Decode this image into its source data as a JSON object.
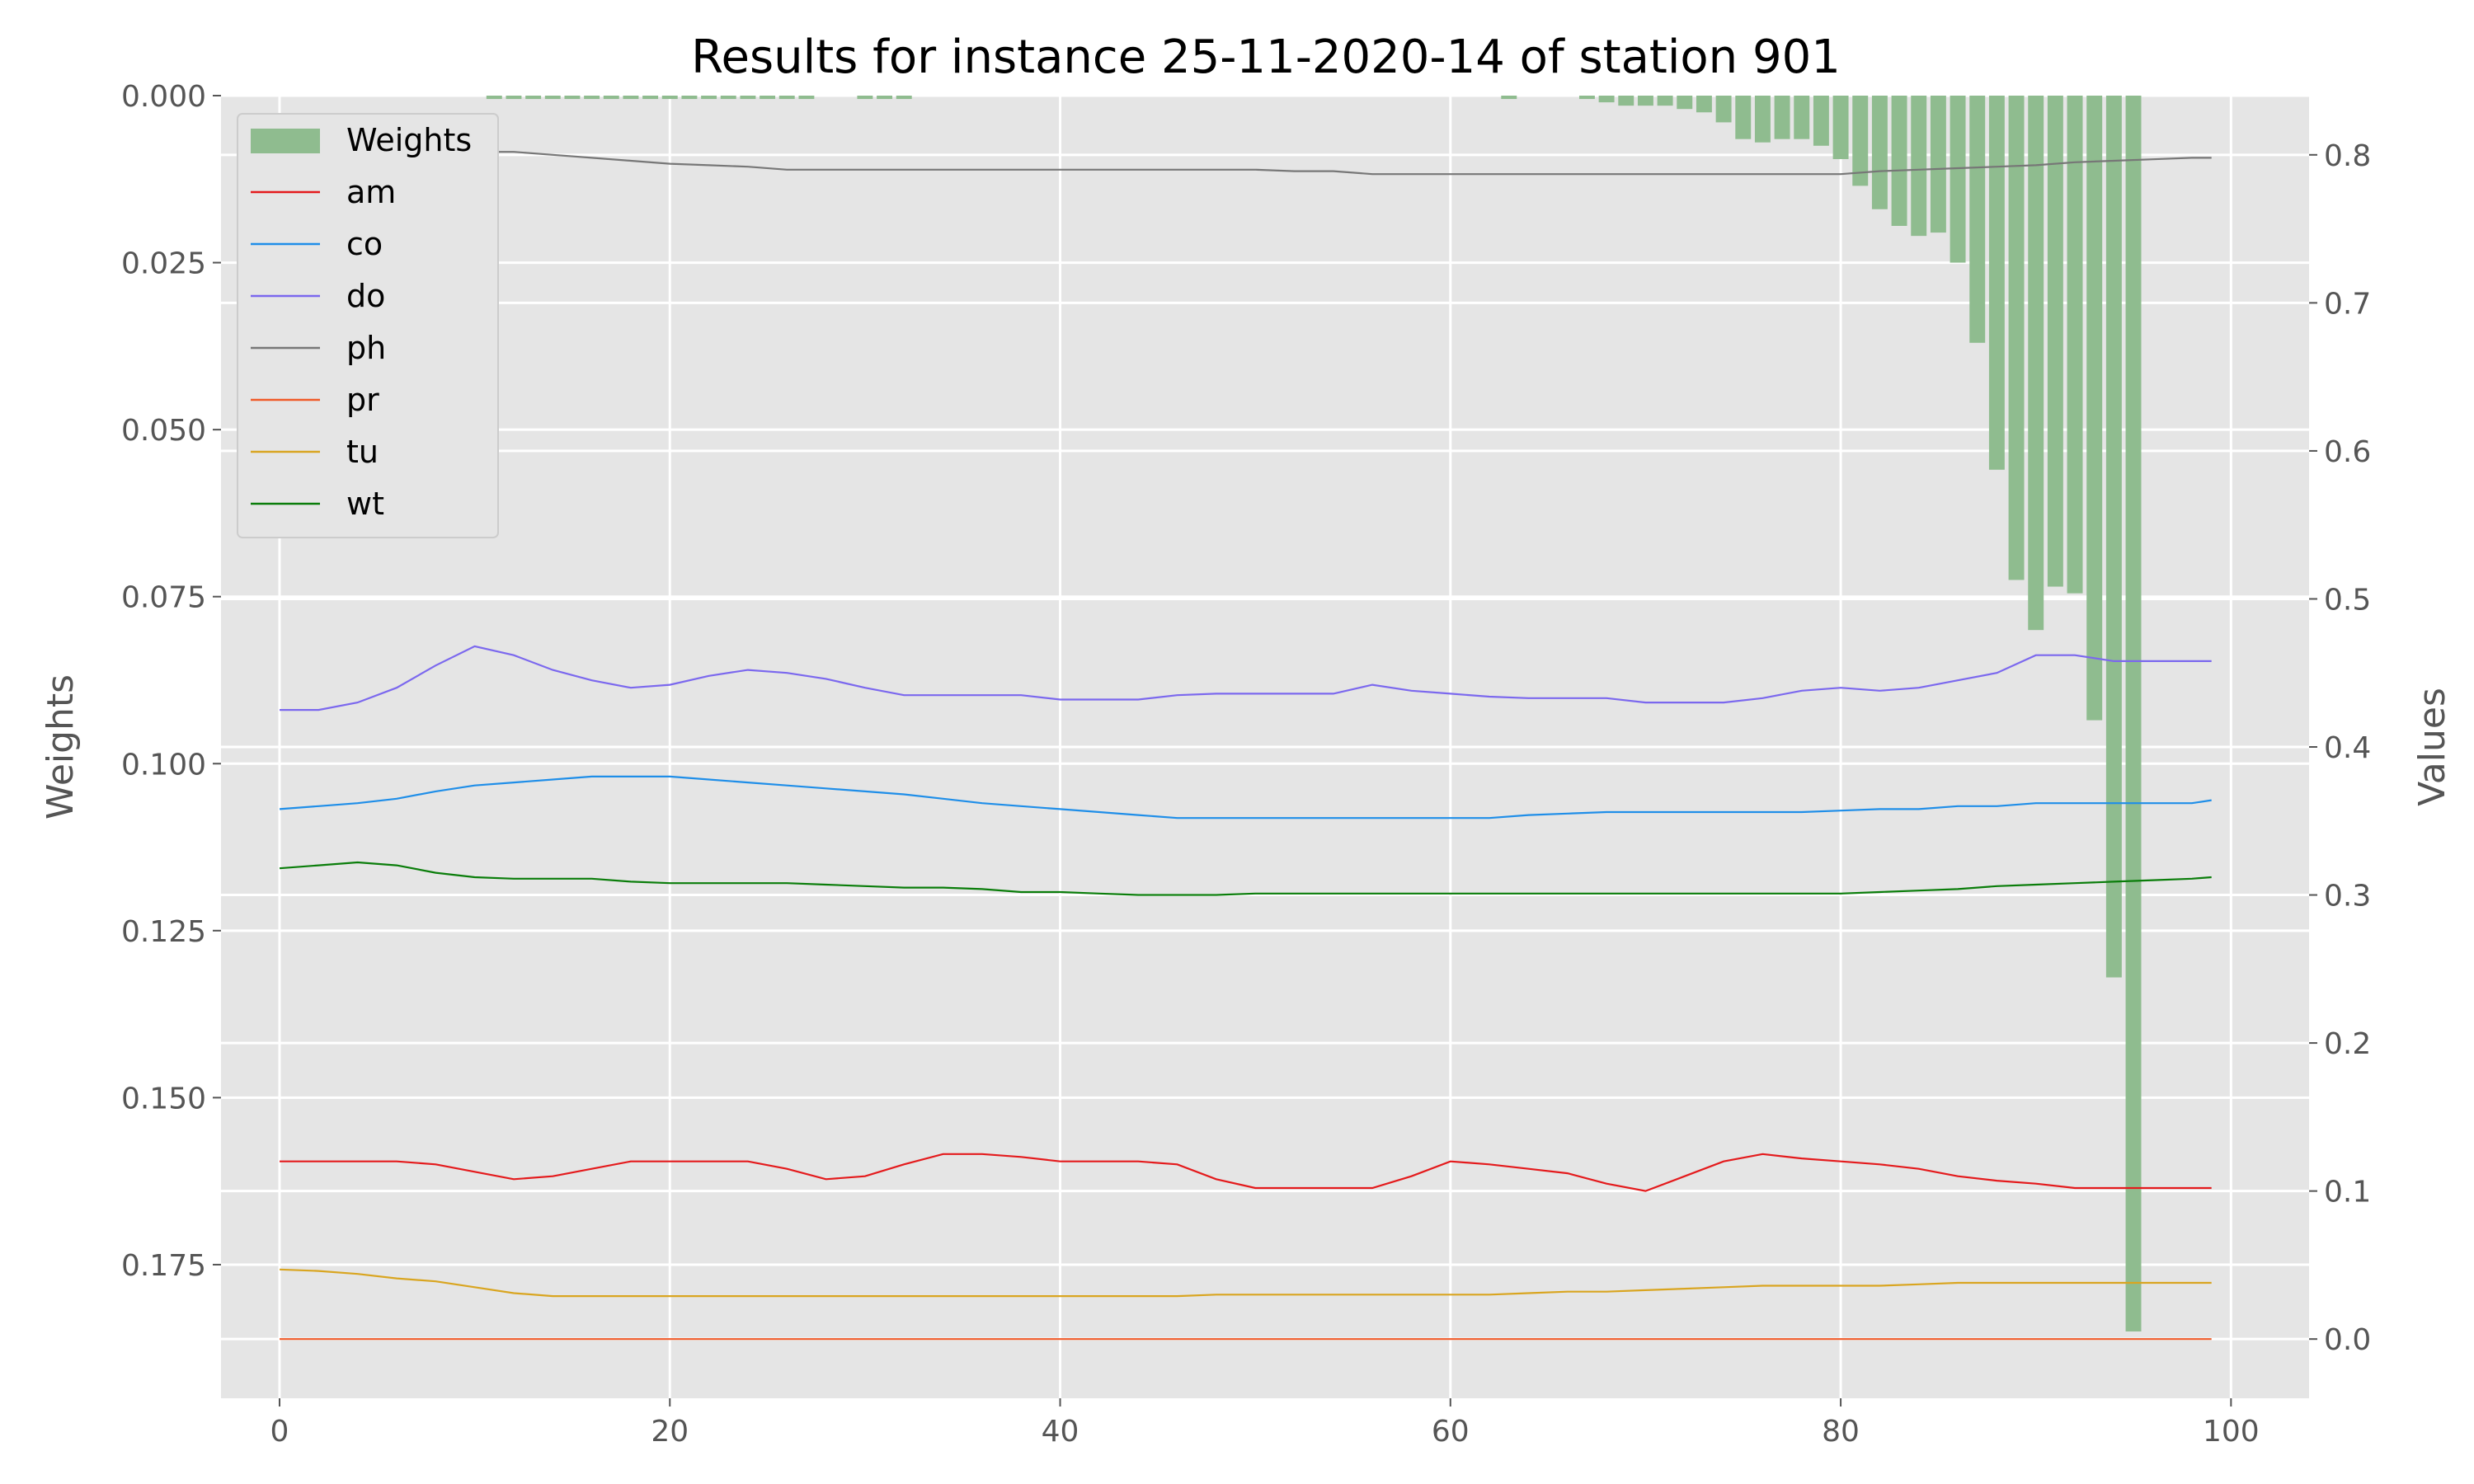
{
  "chart_data": {
    "type": "bar+line",
    "title": "Results for instance 25-11-2020-14 of station 901",
    "ylabel_left": "Weights",
    "ylabel_right": "Values",
    "xlim": [
      -3,
      104
    ],
    "ylim_left": [
      0.0,
      0.195
    ],
    "ylim_right": [
      -0.04,
      0.84
    ],
    "left_axis_inverted": true,
    "x_ticks": [
      0,
      20,
      40,
      60,
      80,
      100
    ],
    "x_tick_labels": [
      "0",
      "20",
      "40",
      "60",
      "80",
      "100"
    ],
    "left_ticks": [
      0.0,
      0.025,
      0.05,
      0.075,
      0.1,
      0.125,
      0.15,
      0.175
    ],
    "left_tick_labels": [
      "0.000",
      "0.025",
      "0.050",
      "0.075",
      "0.100",
      "0.125",
      "0.150",
      "0.175"
    ],
    "right_ticks": [
      0.0,
      0.1,
      0.2,
      0.3,
      0.4,
      0.5,
      0.6,
      0.7,
      0.8
    ],
    "right_tick_labels": [
      "0.0",
      "0.1",
      "0.2",
      "0.3",
      "0.4",
      "0.5",
      "0.6",
      "0.7",
      "0.8"
    ],
    "grid": true,
    "legend_position": "upper-left",
    "bar_color": "#8fbc8f",
    "weights": {
      "name": "Weights",
      "x": [
        11,
        12,
        13,
        14,
        15,
        16,
        17,
        18,
        19,
        20,
        21,
        22,
        23,
        24,
        25,
        26,
        27,
        30,
        31,
        32,
        63,
        67,
        68,
        69,
        70,
        71,
        72,
        73,
        74,
        75,
        76,
        77,
        78,
        79,
        80,
        81,
        82,
        83,
        84,
        85,
        86,
        87,
        88,
        89,
        90,
        91,
        92,
        93,
        94,
        95
      ],
      "values": [
        0.0005,
        0.0005,
        0.0005,
        0.0005,
        0.0005,
        0.0005,
        0.0005,
        0.0005,
        0.0005,
        0.0005,
        0.0005,
        0.0005,
        0.0005,
        0.0005,
        0.0005,
        0.0005,
        0.0005,
        0.0005,
        0.0005,
        0.0005,
        0.0005,
        0.0005,
        0.001,
        0.0015,
        0.0015,
        0.0015,
        0.002,
        0.0025,
        0.004,
        0.0065,
        0.007,
        0.0065,
        0.0065,
        0.0075,
        0.0095,
        0.0135,
        0.017,
        0.0195,
        0.021,
        0.0205,
        0.025,
        0.037,
        0.056,
        0.0725,
        0.08,
        0.0735,
        0.0745,
        0.0935,
        0.132,
        0.185
      ]
    },
    "x": [
      0,
      2,
      4,
      6,
      8,
      10,
      12,
      14,
      16,
      18,
      20,
      22,
      24,
      26,
      28,
      30,
      32,
      34,
      36,
      38,
      40,
      42,
      44,
      46,
      48,
      50,
      52,
      54,
      56,
      58,
      60,
      62,
      64,
      66,
      68,
      70,
      72,
      74,
      76,
      78,
      80,
      82,
      84,
      86,
      88,
      90,
      92,
      94,
      96,
      98,
      99
    ],
    "series": [
      {
        "name": "am",
        "color": "#e41a1c",
        "values": [
          0.12,
          0.12,
          0.12,
          0.12,
          0.118,
          0.113,
          0.108,
          0.11,
          0.115,
          0.12,
          0.12,
          0.12,
          0.12,
          0.115,
          0.108,
          0.11,
          0.118,
          0.125,
          0.125,
          0.123,
          0.12,
          0.12,
          0.12,
          0.118,
          0.108,
          0.102,
          0.102,
          0.102,
          0.102,
          0.11,
          0.12,
          0.118,
          0.115,
          0.112,
          0.105,
          0.1,
          0.11,
          0.12,
          0.125,
          0.122,
          0.12,
          0.118,
          0.115,
          0.11,
          0.107,
          0.105,
          0.102,
          0.102,
          0.102,
          0.102,
          0.102
        ]
      },
      {
        "name": "co",
        "color": "#1f8ee8",
        "values": [
          0.358,
          0.36,
          0.362,
          0.365,
          0.37,
          0.374,
          0.376,
          0.378,
          0.38,
          0.38,
          0.38,
          0.378,
          0.376,
          0.374,
          0.372,
          0.37,
          0.368,
          0.365,
          0.362,
          0.36,
          0.358,
          0.356,
          0.354,
          0.352,
          0.352,
          0.352,
          0.352,
          0.352,
          0.352,
          0.352,
          0.352,
          0.352,
          0.354,
          0.355,
          0.356,
          0.356,
          0.356,
          0.356,
          0.356,
          0.356,
          0.357,
          0.358,
          0.358,
          0.36,
          0.36,
          0.362,
          0.362,
          0.362,
          0.362,
          0.362,
          0.364
        ]
      },
      {
        "name": "do",
        "color": "#7b68ee",
        "values": [
          0.425,
          0.425,
          0.43,
          0.44,
          0.455,
          0.468,
          0.462,
          0.452,
          0.445,
          0.44,
          0.442,
          0.448,
          0.452,
          0.45,
          0.446,
          0.44,
          0.435,
          0.435,
          0.435,
          0.435,
          0.432,
          0.432,
          0.432,
          0.435,
          0.436,
          0.436,
          0.436,
          0.436,
          0.442,
          0.438,
          0.436,
          0.434,
          0.433,
          0.433,
          0.433,
          0.43,
          0.43,
          0.43,
          0.433,
          0.438,
          0.44,
          0.438,
          0.44,
          0.445,
          0.45,
          0.462,
          0.462,
          0.458,
          0.458,
          0.458,
          0.458
        ]
      },
      {
        "name": "ph",
        "color": "#777777",
        "values": [
          0.795,
          0.795,
          0.795,
          0.795,
          0.798,
          0.802,
          0.802,
          0.8,
          0.798,
          0.796,
          0.794,
          0.793,
          0.792,
          0.79,
          0.79,
          0.79,
          0.79,
          0.79,
          0.79,
          0.79,
          0.79,
          0.79,
          0.79,
          0.79,
          0.79,
          0.79,
          0.789,
          0.789,
          0.787,
          0.787,
          0.787,
          0.787,
          0.787,
          0.787,
          0.787,
          0.787,
          0.787,
          0.787,
          0.787,
          0.787,
          0.787,
          0.789,
          0.79,
          0.791,
          0.792,
          0.793,
          0.795,
          0.796,
          0.797,
          0.798,
          0.798
        ]
      },
      {
        "name": "pr",
        "color": "#f05a28",
        "values": [
          0.0,
          0.0,
          0.0,
          0.0,
          0.0,
          0.0,
          0.0,
          0.0,
          0.0,
          0.0,
          0.0,
          0.0,
          0.0,
          0.0,
          0.0,
          0.0,
          0.0,
          0.0,
          0.0,
          0.0,
          0.0,
          0.0,
          0.0,
          0.0,
          0.0,
          0.0,
          0.0,
          0.0,
          0.0,
          0.0,
          0.0,
          0.0,
          0.0,
          0.0,
          0.0,
          0.0,
          0.0,
          0.0,
          0.0,
          0.0,
          0.0,
          0.0,
          0.0,
          0.0,
          0.0,
          0.0,
          0.0,
          0.0,
          0.0,
          0.0,
          0.0
        ]
      },
      {
        "name": "tu",
        "color": "#d9a520",
        "values": [
          0.047,
          0.046,
          0.044,
          0.041,
          0.039,
          0.035,
          0.031,
          0.029,
          0.029,
          0.029,
          0.029,
          0.029,
          0.029,
          0.029,
          0.029,
          0.029,
          0.029,
          0.029,
          0.029,
          0.029,
          0.029,
          0.029,
          0.029,
          0.029,
          0.03,
          0.03,
          0.03,
          0.03,
          0.03,
          0.03,
          0.03,
          0.03,
          0.031,
          0.032,
          0.032,
          0.033,
          0.034,
          0.035,
          0.036,
          0.036,
          0.036,
          0.036,
          0.037,
          0.038,
          0.038,
          0.038,
          0.038,
          0.038,
          0.038,
          0.038,
          0.038
        ]
      },
      {
        "name": "wt",
        "color": "#0a7d0a",
        "values": [
          0.318,
          0.32,
          0.322,
          0.32,
          0.315,
          0.312,
          0.311,
          0.311,
          0.311,
          0.309,
          0.308,
          0.308,
          0.308,
          0.308,
          0.307,
          0.306,
          0.305,
          0.305,
          0.304,
          0.302,
          0.302,
          0.301,
          0.3,
          0.3,
          0.3,
          0.301,
          0.301,
          0.301,
          0.301,
          0.301,
          0.301,
          0.301,
          0.301,
          0.301,
          0.301,
          0.301,
          0.301,
          0.301,
          0.301,
          0.301,
          0.301,
          0.302,
          0.303,
          0.304,
          0.306,
          0.307,
          0.308,
          0.309,
          0.31,
          0.311,
          0.312
        ]
      }
    ]
  }
}
